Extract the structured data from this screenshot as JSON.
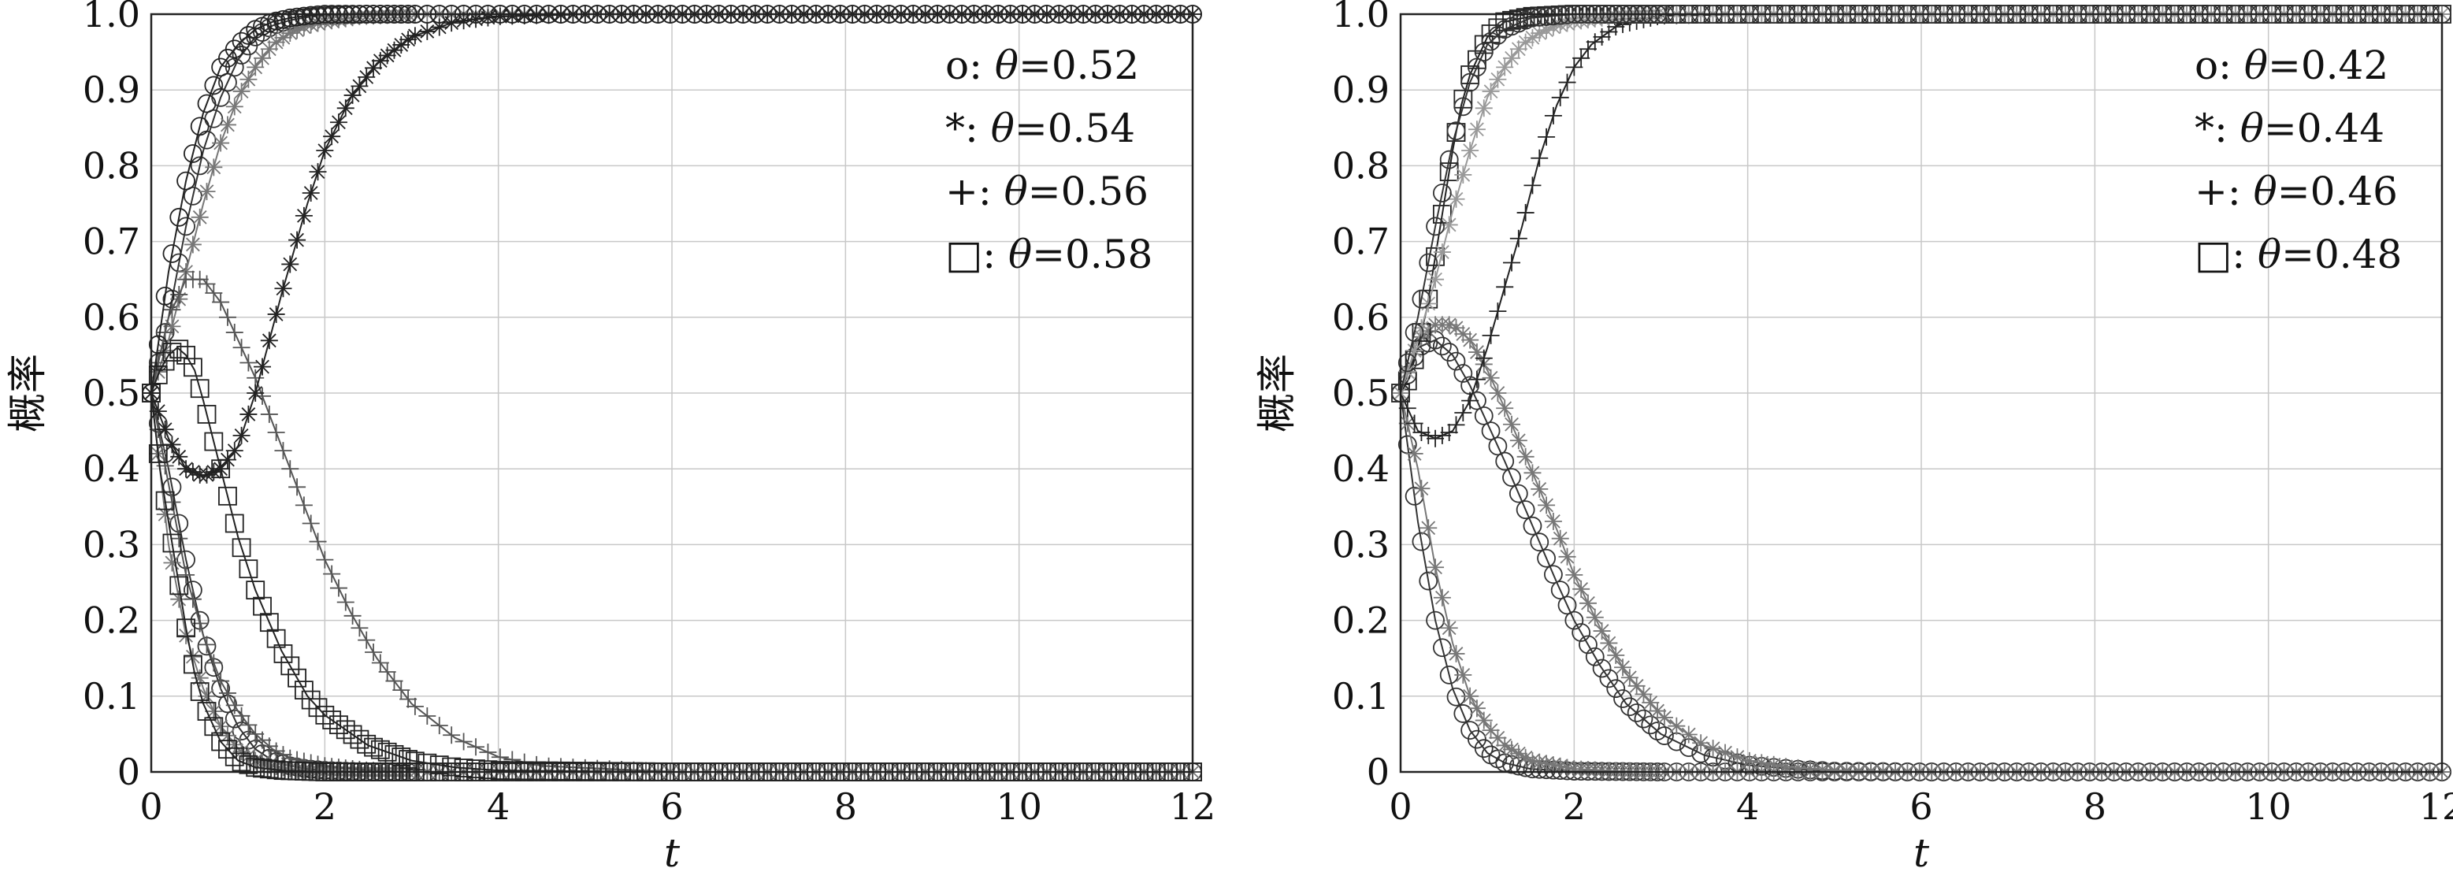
{
  "chart_data": [
    {
      "type": "line",
      "xlabel": "t",
      "ylabel": "概率",
      "xlim": [
        0,
        12
      ],
      "ylim": [
        0,
        1.0
      ],
      "xticks": [
        0,
        2,
        4,
        6,
        8,
        10,
        12
      ],
      "yticks": [
        0,
        0.1,
        0.2,
        0.3,
        0.4,
        0.5,
        0.6,
        0.7,
        0.8,
        0.9,
        1.0
      ],
      "xtick_labels": [
        "0",
        "2",
        "4",
        "6",
        "8",
        "10",
        "12"
      ],
      "ytick_labels": [
        "0",
        "0.1",
        "0.2",
        "0.3",
        "0.4",
        "0.5",
        "0.6",
        "0.7",
        "0.8",
        "0.9",
        "1.0"
      ],
      "grid": true,
      "legend_position": "top-right",
      "series": [
        {
          "name": "θ=0.52",
          "legend_marker": "o:",
          "marker": "circle",
          "color": "#333333",
          "x": [
            0,
            0.2,
            0.4,
            0.6,
            0.8,
            1.0,
            1.2,
            1.4,
            1.6,
            1.8,
            2.0,
            2.5,
            3,
            4,
            6,
            8,
            10,
            12
          ],
          "y": [
            0.5,
            0.6,
            0.72,
            0.82,
            0.89,
            0.94,
            0.97,
            0.985,
            0.992,
            0.996,
            0.998,
            1.0,
            1.0,
            1.0,
            1.0,
            1.0,
            1.0,
            1.0
          ]
        },
        {
          "name": "θ=0.52",
          "legend_marker": "",
          "marker": "circle",
          "color": "#333333",
          "x": [
            0,
            0.2,
            0.4,
            0.6,
            0.8,
            1.0,
            1.2,
            1.4,
            1.6,
            1.8,
            2.0,
            2.5,
            3,
            4,
            6,
            8,
            10,
            12
          ],
          "y": [
            0.5,
            0.4,
            0.28,
            0.18,
            0.11,
            0.06,
            0.03,
            0.015,
            0.008,
            0.004,
            0.002,
            0.0,
            0.0,
            0.0,
            0.0,
            0.0,
            0.0,
            0.0
          ]
        },
        {
          "name": "θ=0.54",
          "legend_marker": "*:",
          "marker": "star",
          "color": "#777777",
          "x": [
            0,
            0.2,
            0.4,
            0.6,
            0.8,
            1.0,
            1.2,
            1.4,
            1.6,
            1.8,
            2.0,
            2.4,
            3,
            4,
            6,
            8,
            10,
            12
          ],
          "y": [
            0.5,
            0.57,
            0.66,
            0.75,
            0.83,
            0.89,
            0.93,
            0.96,
            0.975,
            0.985,
            0.99,
            0.997,
            1.0,
            1.0,
            1.0,
            1.0,
            1.0,
            1.0
          ]
        },
        {
          "name": "θ=0.54",
          "legend_marker": "",
          "marker": "star",
          "color": "#777777",
          "x": [
            0,
            0.2,
            0.4,
            0.6,
            0.8,
            1.0,
            1.2,
            1.4,
            1.6,
            1.8,
            2.0,
            2.5,
            3,
            4,
            6,
            8,
            10,
            12
          ],
          "y": [
            0.5,
            0.3,
            0.18,
            0.11,
            0.06,
            0.03,
            0.015,
            0.008,
            0.004,
            0.002,
            0.001,
            0.0,
            0.0,
            0.0,
            0.0,
            0.0,
            0.0,
            0.0
          ]
        },
        {
          "name": "θ=0.56",
          "legend_marker": "+:",
          "marker": "plus",
          "color": "#555555",
          "x": [
            0,
            0.2,
            0.4,
            0.6,
            0.8,
            1.0,
            1.2,
            1.5,
            1.8,
            2.0,
            2.3,
            2.6,
            3.0,
            3.5,
            4.0,
            4.5,
            6,
            8,
            10,
            12
          ],
          "y": [
            0.5,
            0.6,
            0.65,
            0.65,
            0.62,
            0.57,
            0.52,
            0.43,
            0.34,
            0.28,
            0.21,
            0.15,
            0.09,
            0.045,
            0.02,
            0.008,
            0.0,
            0.0,
            0.0,
            0.0
          ]
        },
        {
          "name": "θ=0.56",
          "legend_marker": "",
          "marker": "plus",
          "color": "#555555",
          "x": [
            0,
            0.2,
            0.4,
            0.6,
            0.8,
            1.0,
            1.2,
            1.4,
            1.6,
            2.0,
            2.5,
            3,
            4,
            6,
            8,
            10,
            12
          ],
          "y": [
            0.5,
            0.38,
            0.26,
            0.18,
            0.12,
            0.08,
            0.05,
            0.03,
            0.018,
            0.008,
            0.002,
            0.0,
            0.0,
            0.0,
            0.0,
            0.0,
            0.0
          ]
        },
        {
          "name": "θ=0.56",
          "legend_marker": "",
          "marker": "star",
          "color": "#222222",
          "x": [
            0,
            0.2,
            0.4,
            0.6,
            0.8,
            1.0,
            1.2,
            1.5,
            1.8,
            2.0,
            2.3,
            2.6,
            3.0,
            3.5,
            4.0,
            5,
            6,
            8,
            10,
            12
          ],
          "y": [
            0.5,
            0.44,
            0.4,
            0.39,
            0.4,
            0.43,
            0.5,
            0.63,
            0.75,
            0.82,
            0.89,
            0.935,
            0.97,
            0.99,
            0.997,
            1.0,
            1.0,
            1.0,
            1.0,
            1.0
          ]
        },
        {
          "name": "θ=0.58",
          "legend_marker": "□:",
          "marker": "square",
          "color": "#222222",
          "x": [
            0,
            0.1,
            0.2,
            0.3,
            0.4,
            0.5,
            0.6,
            0.8,
            1.0,
            1.2,
            1.5,
            1.8,
            2.0,
            2.5,
            3.0,
            3.5,
            4,
            6,
            8,
            10,
            12
          ],
          "y": [
            0.5,
            0.53,
            0.55,
            0.56,
            0.55,
            0.53,
            0.49,
            0.4,
            0.31,
            0.24,
            0.16,
            0.1,
            0.075,
            0.035,
            0.015,
            0.006,
            0.002,
            0.0,
            0.0,
            0.0,
            0.0
          ]
        },
        {
          "name": "θ=0.58",
          "legend_marker": "",
          "marker": "square",
          "color": "#222222",
          "x": [
            0,
            0.1,
            0.2,
            0.3,
            0.4,
            0.5,
            0.6,
            0.8,
            1.0,
            1.2,
            1.5,
            2,
            3,
            4,
            6,
            8,
            10,
            12
          ],
          "y": [
            0.5,
            0.4,
            0.33,
            0.26,
            0.19,
            0.13,
            0.09,
            0.04,
            0.015,
            0.006,
            0.002,
            0.0,
            0.0,
            0.0,
            0.0,
            0.0,
            0.0,
            0.0
          ]
        },
        {
          "name": "θ=0.58",
          "legend_marker": "",
          "marker": "circle",
          "color": "#222222",
          "x": [
            0,
            0.2,
            0.4,
            0.6,
            0.8,
            1.0,
            1.2,
            1.4,
            1.6,
            1.8,
            2.0,
            2.5,
            3,
            4,
            6,
            8,
            10,
            12
          ],
          "y": [
            0.5,
            0.66,
            0.78,
            0.87,
            0.93,
            0.96,
            0.98,
            0.99,
            0.995,
            0.998,
            1.0,
            1.0,
            1.0,
            1.0,
            1.0,
            1.0,
            1.0,
            1.0
          ]
        }
      ]
    },
    {
      "type": "line",
      "xlabel": "t",
      "ylabel": "概率",
      "xlim": [
        0,
        12
      ],
      "ylim": [
        0,
        1.0
      ],
      "xticks": [
        0,
        2,
        4,
        6,
        8,
        10,
        12
      ],
      "yticks": [
        0,
        0.1,
        0.2,
        0.3,
        0.4,
        0.5,
        0.6,
        0.7,
        0.8,
        0.9,
        1.0
      ],
      "xtick_labels": [
        "0",
        "2",
        "4",
        "6",
        "8",
        "10",
        "12"
      ],
      "ytick_labels": [
        "0",
        "0.1",
        "0.2",
        "0.3",
        "0.4",
        "0.5",
        "0.6",
        "0.7",
        "0.8",
        "0.9",
        "1.0"
      ],
      "grid": true,
      "legend_position": "top-right",
      "series": [
        {
          "name": "θ=0.42",
          "legend_marker": "o:",
          "marker": "circle",
          "color": "#333333",
          "x": [
            0,
            0.2,
            0.4,
            0.6,
            0.8,
            1.0,
            1.2,
            1.5,
            1.8,
            2.0,
            2.3,
            2.6,
            3.0,
            3.5,
            4.0,
            4.5,
            5,
            6,
            8,
            10,
            12
          ],
          "y": [
            0.5,
            0.56,
            0.57,
            0.55,
            0.51,
            0.46,
            0.41,
            0.33,
            0.25,
            0.2,
            0.14,
            0.09,
            0.05,
            0.022,
            0.009,
            0.004,
            0.001,
            0.0,
            0.0,
            0.0,
            0.0
          ]
        },
        {
          "name": "θ=0.42",
          "legend_marker": "",
          "marker": "circle",
          "color": "#333333",
          "x": [
            0,
            0.2,
            0.4,
            0.6,
            0.8,
            1.0,
            1.2,
            1.5,
            2,
            3,
            4,
            6,
            8,
            10,
            12
          ],
          "y": [
            0.5,
            0.33,
            0.2,
            0.11,
            0.055,
            0.025,
            0.012,
            0.004,
            0.001,
            0.0,
            0.0,
            0.0,
            0.0,
            0.0,
            0.0
          ]
        },
        {
          "name": "θ=0.44",
          "legend_marker": "*:",
          "marker": "star",
          "color": "#777777",
          "x": [
            0,
            0.2,
            0.4,
            0.6,
            0.8,
            1.0,
            1.2,
            1.5,
            1.8,
            2.0,
            2.3,
            2.6,
            3.0,
            3.5,
            4.0,
            4.5,
            5,
            6,
            8,
            10,
            12
          ],
          "y": [
            0.5,
            0.57,
            0.59,
            0.59,
            0.57,
            0.53,
            0.48,
            0.4,
            0.32,
            0.26,
            0.19,
            0.13,
            0.075,
            0.035,
            0.015,
            0.006,
            0.002,
            0.0,
            0.0,
            0.0,
            0.0
          ]
        },
        {
          "name": "θ=0.44",
          "legend_marker": "",
          "marker": "star",
          "color": "#777777",
          "x": [
            0,
            0.2,
            0.4,
            0.6,
            0.8,
            1.0,
            1.2,
            1.5,
            2,
            2.5,
            3,
            4,
            6,
            8,
            10,
            12
          ],
          "y": [
            0.5,
            0.4,
            0.27,
            0.17,
            0.1,
            0.06,
            0.035,
            0.015,
            0.004,
            0.001,
            0.0,
            0.0,
            0.0,
            0.0,
            0.0,
            0.0
          ]
        },
        {
          "name": "θ=0.46",
          "legend_marker": "+:",
          "marker": "plus",
          "color": "#222222",
          "x": [
            0,
            0.2,
            0.4,
            0.6,
            0.8,
            1.0,
            1.2,
            1.4,
            1.6,
            1.8,
            2.0,
            2.2,
            2.5,
            3.0,
            4,
            6,
            8,
            10,
            12
          ],
          "y": [
            0.5,
            0.45,
            0.44,
            0.45,
            0.49,
            0.56,
            0.64,
            0.72,
            0.81,
            0.88,
            0.93,
            0.96,
            0.985,
            0.998,
            1.0,
            1.0,
            1.0,
            1.0,
            1.0
          ]
        },
        {
          "name": "θ=0.48",
          "legend_marker": "□:",
          "marker": "square",
          "color": "#222222",
          "x": [
            0,
            0.1,
            0.2,
            0.3,
            0.4,
            0.5,
            0.6,
            0.7,
            0.8,
            1.0,
            1.2,
            1.5,
            2,
            3,
            4,
            6,
            8,
            10,
            12
          ],
          "y": [
            0.5,
            0.52,
            0.56,
            0.61,
            0.68,
            0.75,
            0.82,
            0.88,
            0.92,
            0.97,
            0.99,
            0.997,
            1.0,
            1.0,
            1.0,
            1.0,
            1.0,
            1.0,
            1.0
          ]
        },
        {
          "name": "θ=0.48",
          "legend_marker": "",
          "marker": "star",
          "color": "#999999",
          "x": [
            0,
            0.2,
            0.4,
            0.6,
            0.8,
            1.0,
            1.2,
            1.4,
            1.6,
            1.8,
            2.0,
            2.5,
            3,
            4,
            6,
            8,
            10,
            12
          ],
          "y": [
            0.5,
            0.57,
            0.65,
            0.74,
            0.82,
            0.89,
            0.93,
            0.96,
            0.975,
            0.985,
            0.99,
            0.998,
            1.0,
            1.0,
            1.0,
            1.0,
            1.0,
            1.0
          ]
        },
        {
          "name": "θ=0.48",
          "legend_marker": "",
          "marker": "circle",
          "color": "#333333",
          "x": [
            0,
            0.2,
            0.4,
            0.6,
            0.8,
            1.0,
            1.2,
            1.5,
            2,
            3,
            4,
            6,
            8,
            10,
            12
          ],
          "y": [
            0.5,
            0.6,
            0.72,
            0.83,
            0.91,
            0.96,
            0.98,
            0.995,
            1.0,
            1.0,
            1.0,
            1.0,
            1.0,
            1.0,
            1.0
          ]
        }
      ]
    }
  ]
}
